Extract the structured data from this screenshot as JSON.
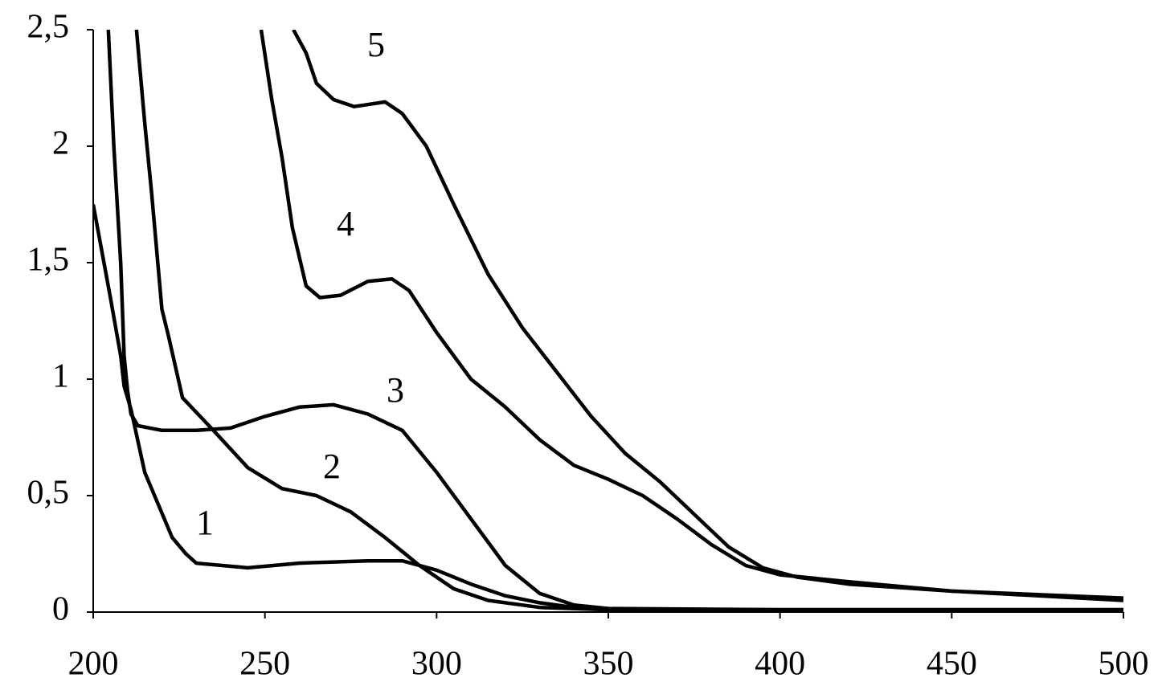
{
  "chart_data": {
    "type": "line",
    "xlim": [
      200,
      500
    ],
    "xticks": [
      200,
      250,
      300,
      350,
      400,
      450,
      500
    ],
    "ylim": [
      0,
      2.5
    ],
    "yticks": [
      0,
      {
        "value": 0.5,
        "label": "0,5"
      },
      1,
      {
        "value": 1.5,
        "label": "1,5"
      },
      2,
      {
        "value": 2.5,
        "label": "2,5"
      }
    ],
    "grid": false,
    "series": [
      {
        "name": "1",
        "color": "#000000",
        "x": [
          200,
          205,
          208,
          209,
          211,
          215,
          223,
          227,
          230,
          245,
          260,
          280,
          290,
          300,
          310,
          320,
          330,
          340,
          360,
          400,
          450,
          500
        ],
        "values": [
          1.75,
          1.35,
          1.1,
          0.97,
          0.87,
          0.6,
          0.32,
          0.25,
          0.21,
          0.19,
          0.21,
          0.22,
          0.22,
          0.18,
          0.12,
          0.07,
          0.04,
          0.02,
          0.01,
          0.01,
          0.01,
          0.01
        ]
      },
      {
        "name": "2",
        "color": "#000000",
        "x": [
          212.6,
          215,
          217,
          220,
          222,
          226,
          235,
          245,
          255,
          265,
          275,
          285,
          295,
          305,
          315,
          330,
          350,
          400,
          500
        ],
        "values": [
          2.5,
          2.1,
          1.8,
          1.3,
          1.18,
          0.92,
          0.78,
          0.62,
          0.53,
          0.5,
          0.43,
          0.32,
          0.2,
          0.1,
          0.05,
          0.02,
          0.01,
          0.01,
          0.01
        ]
      },
      {
        "name": "3",
        "color": "#000000",
        "x": [
          204.4,
          206,
          208,
          209,
          210,
          211,
          213,
          220,
          230,
          240,
          250,
          260,
          270,
          280,
          290,
          300,
          310,
          320,
          330,
          340,
          350,
          400,
          500
        ],
        "values": [
          2.5,
          2.0,
          1.5,
          1.1,
          0.95,
          0.85,
          0.8,
          0.78,
          0.78,
          0.79,
          0.84,
          0.88,
          0.89,
          0.85,
          0.78,
          0.6,
          0.4,
          0.2,
          0.08,
          0.03,
          0.015,
          0.01,
          0.01
        ]
      },
      {
        "name": "4",
        "color": "#000000",
        "x": [
          248.9,
          252,
          255,
          258,
          262,
          266,
          272,
          280,
          287,
          292,
          300,
          310,
          320,
          330,
          340,
          350,
          360,
          370,
          380,
          390,
          400,
          420,
          450,
          500
        ],
        "values": [
          2.5,
          2.2,
          1.95,
          1.65,
          1.4,
          1.35,
          1.36,
          1.42,
          1.43,
          1.38,
          1.2,
          1.0,
          0.88,
          0.74,
          0.63,
          0.57,
          0.5,
          0.4,
          0.29,
          0.2,
          0.16,
          0.13,
          0.09,
          0.05
        ]
      },
      {
        "name": "5",
        "color": "#000000",
        "x": [
          258.3,
          262,
          265,
          270,
          276,
          285,
          290,
          297,
          305,
          315,
          325,
          335,
          345,
          355,
          365,
          375,
          385,
          395,
          405,
          420,
          450,
          500
        ],
        "values": [
          2.5,
          2.4,
          2.27,
          2.2,
          2.17,
          2.19,
          2.14,
          2.0,
          1.75,
          1.45,
          1.22,
          1.03,
          0.84,
          0.68,
          0.56,
          0.42,
          0.28,
          0.19,
          0.15,
          0.12,
          0.09,
          0.06
        ]
      }
    ]
  }
}
